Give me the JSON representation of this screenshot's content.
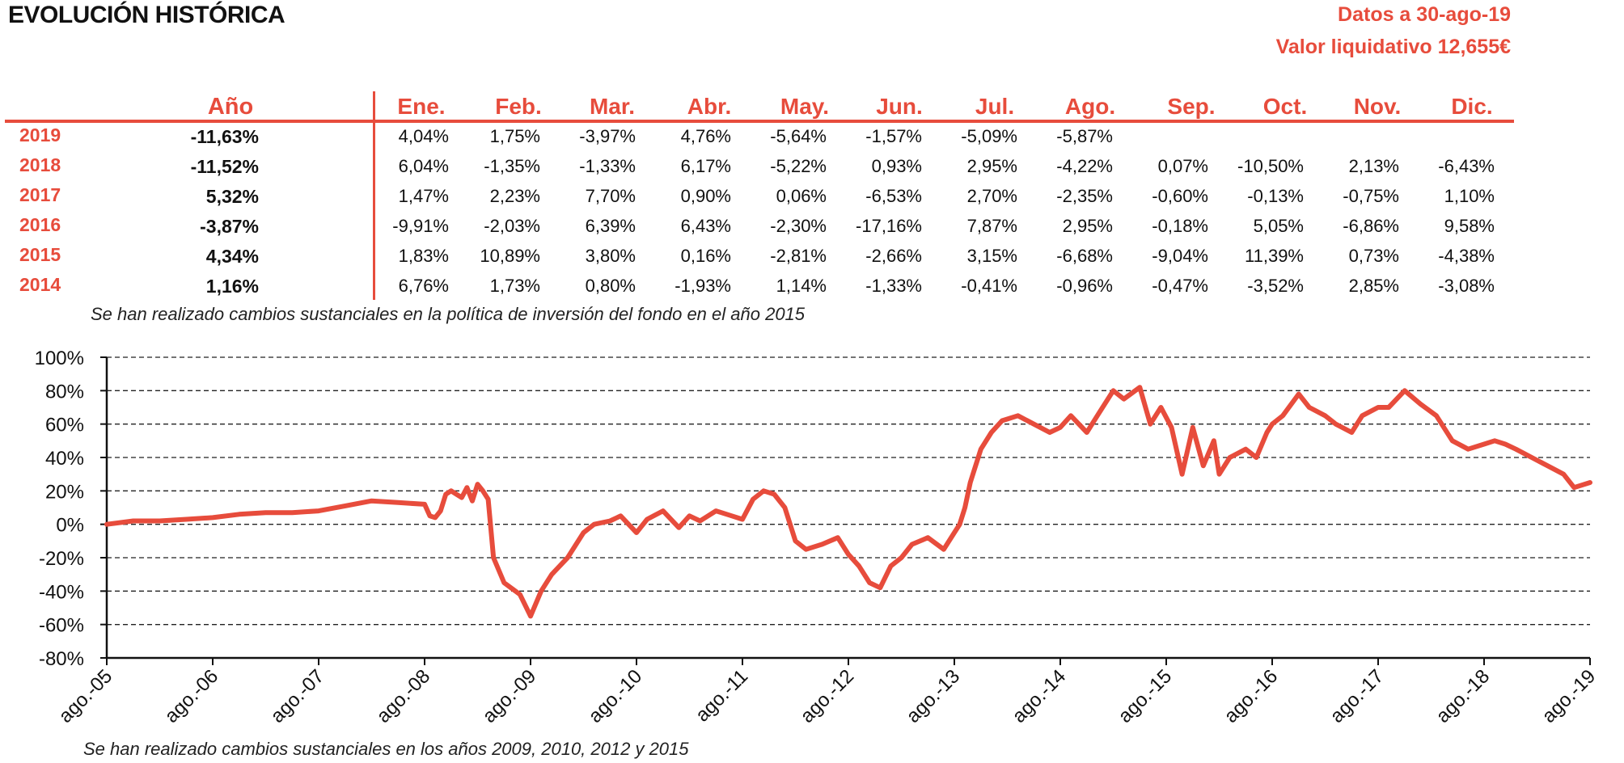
{
  "header": {
    "title": "EVOLUCIÓN HISTÓRICA",
    "date_label": "Datos a 30-ago-19",
    "nav_label": "Valor liquidativo 12,655€"
  },
  "table": {
    "year_header": "Año",
    "months": [
      "Ene.",
      "Feb.",
      "Mar.",
      "Abr.",
      "May.",
      "Jun.",
      "Jul.",
      "Ago.",
      "Sep.",
      "Oct.",
      "Nov.",
      "Dic."
    ],
    "rows": [
      {
        "year": "2019",
        "annual": "-11,63%",
        "values": [
          "4,04%",
          "1,75%",
          "-3,97%",
          "4,76%",
          "-5,64%",
          "-1,57%",
          "-5,09%",
          "-5,87%",
          "",
          "",
          "",
          ""
        ]
      },
      {
        "year": "2018",
        "annual": "-11,52%",
        "values": [
          "6,04%",
          "-1,35%",
          "-1,33%",
          "6,17%",
          "-5,22%",
          "0,93%",
          "2,95%",
          "-4,22%",
          "0,07%",
          "-10,50%",
          "2,13%",
          "-6,43%"
        ]
      },
      {
        "year": "2017",
        "annual": "5,32%",
        "values": [
          "1,47%",
          "2,23%",
          "7,70%",
          "0,90%",
          "0,06%",
          "-6,53%",
          "2,70%",
          "-2,35%",
          "-0,60%",
          "-0,13%",
          "-0,75%",
          "1,10%"
        ]
      },
      {
        "year": "2016",
        "annual": "-3,87%",
        "values": [
          "-9,91%",
          "-2,03%",
          "6,39%",
          "6,43%",
          "-2,30%",
          "-17,16%",
          "7,87%",
          "2,95%",
          "-0,18%",
          "5,05%",
          "-6,86%",
          "9,58%"
        ]
      },
      {
        "year": "2015",
        "annual": "4,34%",
        "values": [
          "1,83%",
          "10,89%",
          "3,80%",
          "0,16%",
          "-2,81%",
          "-2,66%",
          "3,15%",
          "-6,68%",
          "-9,04%",
          "11,39%",
          "0,73%",
          "-4,38%"
        ]
      },
      {
        "year": "2014",
        "annual": "1,16%",
        "values": [
          "6,76%",
          "1,73%",
          "0,80%",
          "-1,93%",
          "1,14%",
          "-1,33%",
          "-0,41%",
          "-0,96%",
          "-0,47%",
          "-3,52%",
          "2,85%",
          "-3,08%"
        ]
      }
    ],
    "note": "Se han realizado cambios sustanciales en la política de inversión del fondo en el año 2015"
  },
  "chart_data": {
    "type": "line",
    "ylim": [
      -80,
      100
    ],
    "yticks": [
      100,
      80,
      60,
      40,
      20,
      0,
      -20,
      -40,
      -60,
      -80
    ],
    "ytick_labels": [
      "100%",
      "80%",
      "60%",
      "40%",
      "20%",
      "0%",
      "-20%",
      "-40%",
      "-60%",
      "-80%"
    ],
    "xticks": [
      "ago.-05",
      "ago.-06",
      "ago.-07",
      "ago.-08",
      "ago.-09",
      "ago.-10",
      "ago.-11",
      "ago.-12",
      "ago.-13",
      "ago.-14",
      "ago.-15",
      "ago.-16",
      "ago.-17",
      "ago.-18",
      "ago.-19"
    ],
    "grid": true,
    "series": [
      {
        "color": "#e74c3c",
        "x": [
          0,
          0.25,
          0.5,
          0.75,
          1,
          1.25,
          1.5,
          1.75,
          2,
          2.25,
          2.5,
          2.75,
          3,
          3.05,
          3.1,
          3.15,
          3.2,
          3.25,
          3.3,
          3.35,
          3.4,
          3.45,
          3.5,
          3.55,
          3.6,
          3.65,
          3.75,
          3.9,
          4,
          4.1,
          4.2,
          4.35,
          4.5,
          4.6,
          4.75,
          4.85,
          5,
          5.1,
          5.25,
          5.4,
          5.5,
          5.6,
          5.75,
          5.9,
          6,
          6.1,
          6.2,
          6.3,
          6.4,
          6.5,
          6.6,
          6.75,
          6.9,
          7,
          7.1,
          7.2,
          7.3,
          7.4,
          7.5,
          7.6,
          7.75,
          7.9,
          8,
          8.05,
          8.1,
          8.15,
          8.25,
          8.35,
          8.45,
          8.6,
          8.75,
          8.9,
          9,
          9.1,
          9.25,
          9.35,
          9.5,
          9.6,
          9.75,
          9.85,
          9.95,
          10.05,
          10.15,
          10.25,
          10.35,
          10.45,
          10.5,
          10.6,
          10.75,
          10.85,
          10.95,
          11,
          11.1,
          11.25,
          11.35,
          11.5,
          11.6,
          11.75,
          11.85,
          12,
          12.1,
          12.25,
          12.4,
          12.55,
          12.7,
          12.85,
          13,
          13.1,
          13.2,
          13.3,
          13.45,
          13.6,
          13.75,
          13.85,
          14
        ],
        "y": [
          0,
          2,
          2,
          3,
          4,
          6,
          7,
          7,
          8,
          11,
          14,
          13,
          12,
          5,
          4,
          8,
          18,
          20,
          18,
          16,
          22,
          14,
          24,
          20,
          15,
          -20,
          -35,
          -42,
          -55,
          -40,
          -30,
          -20,
          -5,
          0,
          2,
          5,
          -5,
          3,
          8,
          -2,
          5,
          2,
          8,
          5,
          3,
          15,
          20,
          18,
          10,
          -10,
          -15,
          -12,
          -8,
          -18,
          -25,
          -35,
          -38,
          -25,
          -20,
          -12,
          -8,
          -15,
          -5,
          0,
          10,
          25,
          45,
          55,
          62,
          65,
          60,
          55,
          58,
          65,
          55,
          65,
          80,
          75,
          82,
          60,
          70,
          58,
          30,
          58,
          35,
          50,
          30,
          40,
          45,
          40,
          55,
          60,
          65,
          78,
          70,
          65,
          60,
          55,
          65,
          70,
          70,
          80,
          72,
          65,
          50,
          45,
          48,
          50,
          48,
          45,
          40,
          35,
          30,
          22,
          25
        ]
      }
    ],
    "note": "Se han realizado cambios sustanciales en los años 2009, 2010, 2012 y 2015"
  }
}
